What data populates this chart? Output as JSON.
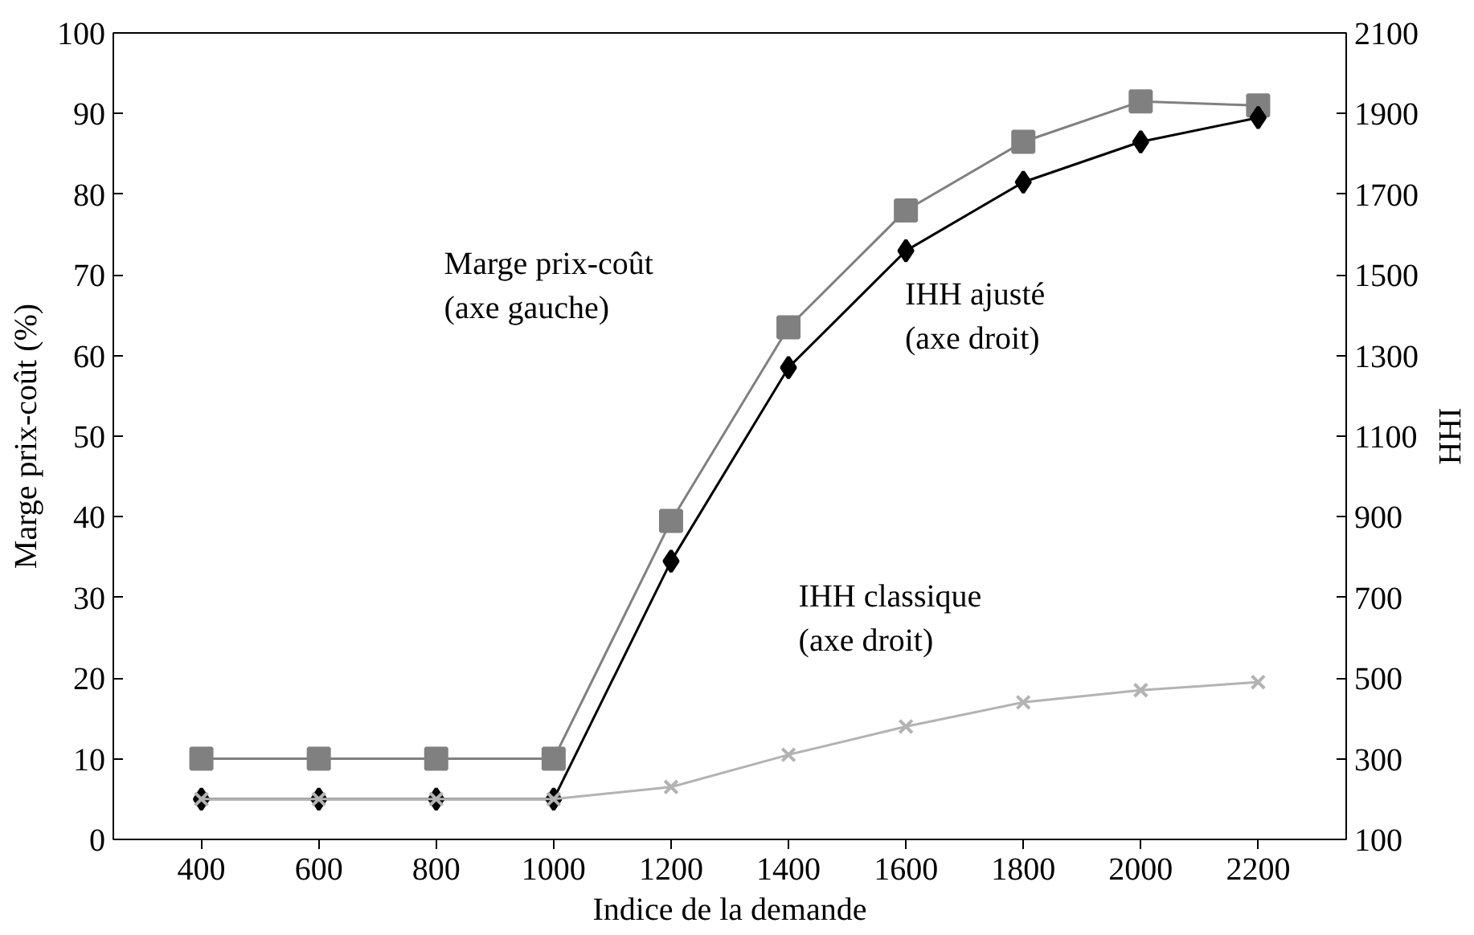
{
  "chart_data": {
    "type": "line",
    "xlabel": "Indice de la demande",
    "ylabel": "Marge prix-coût (%)",
    "y2label": "IHH",
    "x": [
      400,
      600,
      800,
      1000,
      1200,
      1400,
      1600,
      1800,
      2000,
      2200
    ],
    "xlim": [
      250,
      2350
    ],
    "xticks": [
      400,
      600,
      800,
      1000,
      1200,
      1400,
      1600,
      1800,
      2000,
      2200
    ],
    "ylim": [
      0,
      100
    ],
    "yticks": [
      0,
      10,
      20,
      30,
      40,
      50,
      60,
      70,
      80,
      90,
      100
    ],
    "y2lim": [
      100,
      2100
    ],
    "y2ticks": [
      100,
      300,
      500,
      700,
      900,
      1100,
      1300,
      1500,
      1700,
      1900,
      2100
    ],
    "grid": false,
    "series": [
      {
        "color": "#808080",
        "marker": "square",
        "values": [
          10,
          10,
          10,
          10,
          39.5,
          63.5,
          78,
          86.5,
          91.5,
          91
        ]
      },
      {
        "color": "#000000",
        "marker": "diamond",
        "axis": "y2",
        "values": [
          200,
          200,
          200,
          200,
          790,
          1270,
          1560,
          1730,
          1830,
          1890
        ]
      },
      {
        "color": "#b3b3b3",
        "marker": "cross",
        "axis": "y2",
        "values": [
          200,
          200,
          200,
          200,
          230,
          310,
          380,
          440,
          470,
          490
        ]
      }
    ],
    "annotations": [
      "Marge prix-coût\n(axe gauche)",
      "IHH ajusté\n(axe droit)",
      "IHH classique\n(axe droit)"
    ]
  }
}
